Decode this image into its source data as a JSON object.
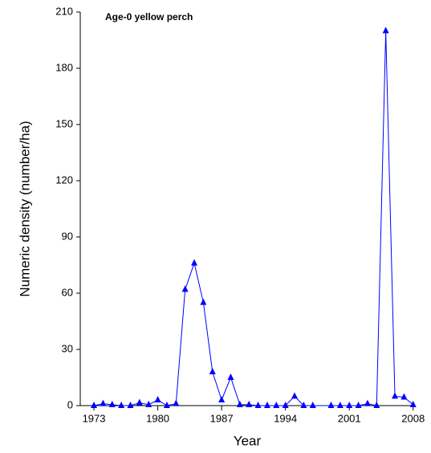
{
  "chart_data": {
    "type": "line",
    "title": "Age-0 yellow perch",
    "x_label": "Year",
    "y_label": "Numeric density (number/ha)",
    "x": [
      1973,
      1974,
      1975,
      1976,
      1977,
      1978,
      1979,
      1980,
      1981,
      1982,
      1983,
      1984,
      1985,
      1986,
      1987,
      1988,
      1989,
      1990,
      1991,
      1992,
      1993,
      1994,
      1995,
      1996,
      1997,
      1999,
      2000,
      2001,
      2002,
      2003,
      2004,
      2005,
      2006,
      2007,
      2008
    ],
    "series": [
      {
        "color": "#0000ff",
        "values": [
          0,
          1,
          0.5,
          0,
          0,
          1.5,
          0.5,
          3,
          0,
          1,
          62,
          76,
          55,
          18,
          3,
          15,
          0.5,
          0.5,
          0,
          0,
          0,
          0,
          5,
          0,
          0,
          0,
          0,
          0,
          0,
          1,
          0,
          200,
          5,
          4.5,
          0.5
        ]
      }
    ],
    "xlim": [
      1971.5,
      2008.2
    ],
    "xticks": [
      1973,
      1980,
      1987,
      1994,
      2001,
      2008
    ],
    "ylim": [
      0,
      210
    ],
    "yticks": [
      0,
      30,
      60,
      90,
      120,
      150,
      180,
      210
    ]
  }
}
